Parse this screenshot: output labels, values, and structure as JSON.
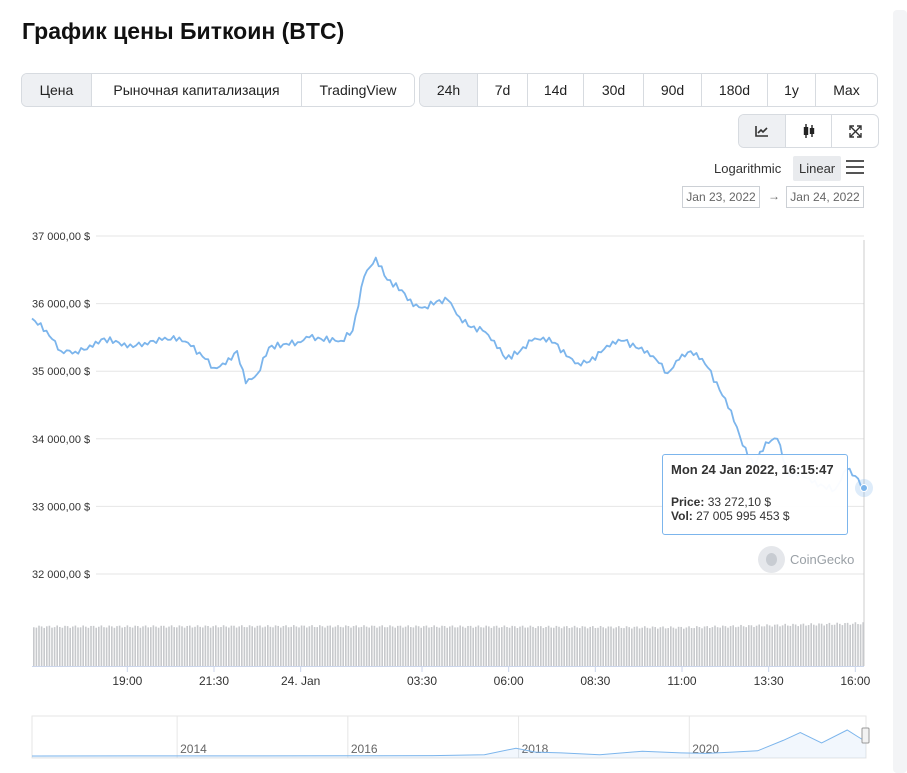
{
  "title": "График цены Биткоин (BTC)",
  "view_tabs": [
    {
      "label": "Цена",
      "active": true
    },
    {
      "label": "Рыночная капитализация",
      "active": false
    },
    {
      "label": "TradingView",
      "active": false
    }
  ],
  "range_tabs": [
    {
      "label": "24h",
      "active": true
    },
    {
      "label": "7d",
      "active": false
    },
    {
      "label": "14d",
      "active": false
    },
    {
      "label": "30d",
      "active": false
    },
    {
      "label": "90d",
      "active": false
    },
    {
      "label": "180d",
      "active": false
    },
    {
      "label": "1y",
      "active": false
    },
    {
      "label": "Max",
      "active": false
    }
  ],
  "chart_tools": [
    {
      "icon": "line-chart-icon",
      "active": true
    },
    {
      "icon": "candlestick-icon",
      "active": false
    },
    {
      "icon": "fullscreen-icon",
      "active": false
    }
  ],
  "scale": {
    "log_label": "Logarithmic",
    "linear_label": "Linear",
    "selected": "Linear"
  },
  "date_range": {
    "from": "Jan 23, 2022",
    "to": "Jan 24, 2022",
    "arrow": "→"
  },
  "tooltip": {
    "time": "Mon 24 Jan 2022, 16:15:47",
    "price_label": "Price:",
    "price_value": "33 272,10 $",
    "vol_label": "Vol:",
    "vol_value": "27 005 995 453 $"
  },
  "credit": "CoinGecko",
  "colors": {
    "line": "#7cb5ec",
    "grid": "#e6e6e6",
    "volume": "#c7c9cc",
    "tooltip_border": "#7cb5ec"
  },
  "chart_data": {
    "type": "line",
    "title": "",
    "xlabel": "",
    "ylabel": "",
    "y_scale": "linear",
    "ylim": [
      31500,
      37100
    ],
    "y_ticks": [
      {
        "value": 37000,
        "label": "37 000,00 $"
      },
      {
        "value": 36000,
        "label": "36 000,00 $"
      },
      {
        "value": 35000,
        "label": "35 000,00 $"
      },
      {
        "value": 34000,
        "label": "34 000,00 $"
      },
      {
        "value": 33000,
        "label": "33 000,00 $"
      },
      {
        "value": 32000,
        "label": "32 000,00 $"
      }
    ],
    "x_range": [
      "2022-01-23 16:15",
      "2022-01-24 16:15"
    ],
    "x_ticks": [
      {
        "time": "2022-01-23 19:00",
        "label": "19:00"
      },
      {
        "time": "2022-01-23 21:30",
        "label": "21:30"
      },
      {
        "time": "2022-01-24 00:00",
        "label": "24. Jan"
      },
      {
        "time": "2022-01-24 03:30",
        "label": "03:30"
      },
      {
        "time": "2022-01-24 06:00",
        "label": "06:00"
      },
      {
        "time": "2022-01-24 08:30",
        "label": "08:30"
      },
      {
        "time": "2022-01-24 11:00",
        "label": "11:00"
      },
      {
        "time": "2022-01-24 13:30",
        "label": "13:30"
      },
      {
        "time": "2022-01-24 16:00",
        "label": "16:00"
      }
    ],
    "series": [
      {
        "points": [
          [
            "2022-01-23 16:15",
            35780
          ],
          [
            "2022-01-23 16:40",
            35600
          ],
          [
            "2022-01-23 17:05",
            35300
          ],
          [
            "2022-01-23 17:30",
            35290
          ],
          [
            "2022-01-23 18:00",
            35360
          ],
          [
            "2022-01-23 18:15",
            35470
          ],
          [
            "2022-01-23 18:40",
            35450
          ],
          [
            "2022-01-23 19:00",
            35350
          ],
          [
            "2022-01-23 19:30",
            35420
          ],
          [
            "2022-01-23 20:00",
            35460
          ],
          [
            "2022-01-23 20:30",
            35500
          ],
          [
            "2022-01-23 20:50",
            35370
          ],
          [
            "2022-01-23 21:15",
            35180
          ],
          [
            "2022-01-23 21:30",
            35050
          ],
          [
            "2022-01-23 21:50",
            35100
          ],
          [
            "2022-01-23 22:10",
            35300
          ],
          [
            "2022-01-23 22:25",
            34820
          ],
          [
            "2022-01-23 22:45",
            34960
          ],
          [
            "2022-01-23 23:05",
            35350
          ],
          [
            "2022-01-23 23:30",
            35400
          ],
          [
            "2022-01-23 23:55",
            35430
          ],
          [
            "2022-01-24 00:15",
            35500
          ],
          [
            "2022-01-24 00:35",
            35480
          ],
          [
            "2022-01-24 01:10",
            35450
          ],
          [
            "2022-01-24 01:30",
            35600
          ],
          [
            "2022-01-24 01:50",
            36400
          ],
          [
            "2022-01-24 02:10",
            36680
          ],
          [
            "2022-01-24 02:30",
            36350
          ],
          [
            "2022-01-24 02:55",
            36200
          ],
          [
            "2022-01-24 03:15",
            35960
          ],
          [
            "2022-01-24 03:35",
            35950
          ],
          [
            "2022-01-24 03:55",
            36030
          ],
          [
            "2022-01-24 04:15",
            36050
          ],
          [
            "2022-01-24 04:35",
            35800
          ],
          [
            "2022-01-24 04:55",
            35650
          ],
          [
            "2022-01-24 05:15",
            35600
          ],
          [
            "2022-01-24 05:35",
            35450
          ],
          [
            "2022-01-24 05:55",
            35180
          ],
          [
            "2022-01-24 06:20",
            35300
          ],
          [
            "2022-01-24 06:40",
            35450
          ],
          [
            "2022-01-24 07:00",
            35500
          ],
          [
            "2022-01-24 07:20",
            35420
          ],
          [
            "2022-01-24 07:40",
            35220
          ],
          [
            "2022-01-24 08:00",
            35120
          ],
          [
            "2022-01-24 08:20",
            35140
          ],
          [
            "2022-01-24 08:40",
            35280
          ],
          [
            "2022-01-24 09:00",
            35440
          ],
          [
            "2022-01-24 09:20",
            35450
          ],
          [
            "2022-01-24 09:40",
            35350
          ],
          [
            "2022-01-24 10:00",
            35300
          ],
          [
            "2022-01-24 10:20",
            35120
          ],
          [
            "2022-01-24 10:35",
            34970
          ],
          [
            "2022-01-24 10:55",
            35170
          ],
          [
            "2022-01-24 11:10",
            35280
          ],
          [
            "2022-01-24 11:25",
            35270
          ],
          [
            "2022-01-24 11:45",
            35050
          ],
          [
            "2022-01-24 12:05",
            34720
          ],
          [
            "2022-01-24 12:25",
            34420
          ],
          [
            "2022-01-24 12:45",
            33900
          ],
          [
            "2022-01-24 13:05",
            33600
          ],
          [
            "2022-01-24 13:25",
            33950
          ],
          [
            "2022-01-24 13:45",
            34000
          ],
          [
            "2022-01-24 14:05",
            33450
          ],
          [
            "2022-01-24 14:25",
            33500
          ],
          [
            "2022-01-24 14:45",
            33350
          ],
          [
            "2022-01-24 15:05",
            33300
          ],
          [
            "2022-01-24 15:25",
            33250
          ],
          [
            "2022-01-24 15:45",
            33550
          ],
          [
            "2022-01-24 16:00",
            33450
          ],
          [
            "2022-01-24 16:15",
            33272
          ]
        ]
      }
    ],
    "volume": {
      "note": "volume bars along the bottom; values not labeled",
      "relative_levels": [
        [
          "2022-01-23 16:15",
          0.92
        ],
        [
          "2022-01-24 00:00",
          0.93
        ],
        [
          "2022-01-24 06:00",
          0.92
        ],
        [
          "2022-01-24 11:00",
          0.9
        ],
        [
          "2022-01-24 13:30",
          0.95
        ],
        [
          "2022-01-24 16:15",
          1.0
        ]
      ]
    },
    "navigator": {
      "x_ticks": [
        "2014",
        "2016",
        "2018",
        "2020"
      ],
      "x_range": [
        2012.3,
        2022.07
      ],
      "series": [
        [
          2012.3,
          0.001
        ],
        [
          2013.9,
          0.002
        ],
        [
          2015.0,
          0.005
        ],
        [
          2016.0,
          0.006
        ],
        [
          2017.0,
          0.015
        ],
        [
          2017.6,
          0.05
        ],
        [
          2017.97,
          0.3
        ],
        [
          2018.2,
          0.15
        ],
        [
          2018.5,
          0.12
        ],
        [
          2018.95,
          0.05
        ],
        [
          2019.45,
          0.18
        ],
        [
          2019.9,
          0.12
        ],
        [
          2020.2,
          0.1
        ],
        [
          2020.5,
          0.15
        ],
        [
          2020.8,
          0.2
        ],
        [
          2021.1,
          0.6
        ],
        [
          2021.3,
          0.9
        ],
        [
          2021.55,
          0.5
        ],
        [
          2021.85,
          1.0
        ],
        [
          2021.97,
          0.75
        ],
        [
          2022.07,
          0.55
        ]
      ]
    },
    "grid": true,
    "legend": "none"
  }
}
